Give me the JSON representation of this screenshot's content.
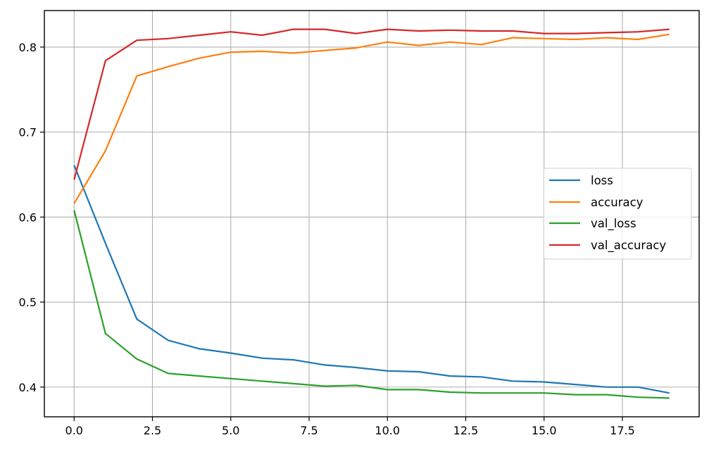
{
  "chart_data": {
    "type": "line",
    "title": "",
    "xlabel": "",
    "ylabel": "",
    "xlim": [
      -0.95,
      19.95
    ],
    "ylim": [
      0.365,
      0.843
    ],
    "grid": true,
    "legend_position": "center right",
    "x": [
      0,
      1,
      2,
      3,
      4,
      5,
      6,
      7,
      8,
      9,
      10,
      11,
      12,
      13,
      14,
      15,
      16,
      17,
      18,
      19
    ],
    "xticks": [
      0.0,
      2.5,
      5.0,
      7.5,
      10.0,
      12.5,
      15.0,
      17.5
    ],
    "xtick_labels": [
      "0.0",
      "2.5",
      "5.0",
      "7.5",
      "10.0",
      "12.5",
      "15.0",
      "17.5"
    ],
    "yticks": [
      0.4,
      0.5,
      0.6,
      0.7,
      0.8
    ],
    "ytick_labels": [
      "0.4",
      "0.5",
      "0.6",
      "0.7",
      "0.8"
    ],
    "series": [
      {
        "name": "loss",
        "color": "#1f77b4",
        "values": [
          0.661,
          0.569,
          0.48,
          0.455,
          0.445,
          0.44,
          0.434,
          0.432,
          0.426,
          0.423,
          0.419,
          0.418,
          0.413,
          0.412,
          0.407,
          0.406,
          0.403,
          0.4,
          0.4,
          0.393
        ]
      },
      {
        "name": "accuracy",
        "color": "#ff7f0e",
        "values": [
          0.616,
          0.678,
          0.766,
          0.777,
          0.787,
          0.794,
          0.795,
          0.793,
          0.796,
          0.799,
          0.806,
          0.802,
          0.806,
          0.803,
          0.811,
          0.81,
          0.809,
          0.811,
          0.809,
          0.815
        ]
      },
      {
        "name": "val_loss",
        "color": "#2ca02c",
        "values": [
          0.608,
          0.463,
          0.433,
          0.416,
          0.413,
          0.41,
          0.407,
          0.404,
          0.401,
          0.402,
          0.397,
          0.397,
          0.394,
          0.393,
          0.393,
          0.393,
          0.391,
          0.391,
          0.388,
          0.387
        ]
      },
      {
        "name": "val_accuracy",
        "color": "#d62728",
        "values": [
          0.644,
          0.784,
          0.808,
          0.81,
          0.814,
          0.818,
          0.814,
          0.821,
          0.821,
          0.816,
          0.821,
          0.819,
          0.82,
          0.819,
          0.819,
          0.816,
          0.816,
          0.817,
          0.818,
          0.821
        ]
      }
    ]
  },
  "legend": {
    "items": [
      {
        "label": "loss",
        "color": "#1f77b4"
      },
      {
        "label": "accuracy",
        "color": "#ff7f0e"
      },
      {
        "label": "val_loss",
        "color": "#2ca02c"
      },
      {
        "label": "val_accuracy",
        "color": "#d62728"
      }
    ]
  }
}
